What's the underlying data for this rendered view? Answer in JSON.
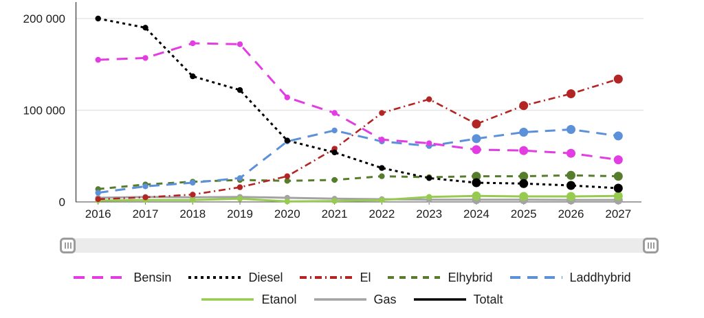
{
  "chart_data": {
    "type": "line",
    "title": "",
    "xlabel": "",
    "ylabel": "",
    "x": [
      "2016",
      "2017",
      "2018",
      "2019",
      "2020",
      "2021",
      "2022",
      "2023",
      "2024",
      "2025",
      "2026",
      "2027"
    ],
    "y_ticks": [
      {
        "value": 0,
        "label": "0"
      },
      {
        "value": 100000,
        "label": "100 000"
      },
      {
        "value": 200000,
        "label": "200 000"
      }
    ],
    "ylim": [
      0,
      218000
    ],
    "grid": "horizontal-only",
    "legend_position": "bottom",
    "forecast_marker_from_index": 8,
    "series": [
      {
        "name": "Bensin",
        "color": "#e23ce2",
        "style": "dashed",
        "dash": "16 11",
        "values": [
          155000,
          157000,
          173000,
          172000,
          114000,
          97000,
          68000,
          64000,
          57000,
          56000,
          53000,
          46000
        ]
      },
      {
        "name": "Diesel",
        "color": "#000000",
        "style": "dotted",
        "dash": "4 5",
        "values": [
          200000,
          190000,
          137000,
          122000,
          67000,
          54000,
          37000,
          26000,
          21000,
          20000,
          18000,
          15000
        ]
      },
      {
        "name": "El",
        "color": "#b32424",
        "style": "dash-dot",
        "dash": "10 5 2 5",
        "values": [
          3000,
          5000,
          8000,
          16000,
          28000,
          58000,
          97000,
          112000,
          85000,
          105000,
          118000,
          134000
        ]
      },
      {
        "name": "Elhybrid",
        "color": "#567d2b",
        "style": "dashed",
        "dash": "9 8",
        "values": [
          14000,
          19000,
          22000,
          24000,
          23000,
          24000,
          28000,
          27000,
          28000,
          28000,
          29000,
          28000
        ]
      },
      {
        "name": "Laddhybrid",
        "color": "#5c90d8",
        "style": "dashed",
        "dash": "15 10",
        "values": [
          10000,
          17000,
          21000,
          26000,
          66000,
          78000,
          66000,
          61000,
          69000,
          76000,
          79000,
          72000
        ]
      },
      {
        "name": "Etanol",
        "color": "#97cb50",
        "style": "solid",
        "dash": "",
        "values": [
          1500,
          2000,
          2000,
          3500,
          500,
          1000,
          2000,
          5500,
          6500,
          6000,
          6000,
          6500
        ]
      },
      {
        "name": "Gas",
        "color": "#a3a3a3",
        "style": "solid",
        "dash": "",
        "values": [
          4500,
          5500,
          5000,
          5500,
          4500,
          3500,
          3000,
          2500,
          2500,
          2500,
          2200,
          2200
        ]
      },
      {
        "name": "Totalt",
        "color": "#000000",
        "style": "solid",
        "dash": "",
        "values": null,
        "visible_in_plot": false
      }
    ]
  },
  "range_filter": {
    "left_grip_icon": "grip-vertical-lines",
    "right_grip_icon": "grip-vertical-lines"
  },
  "colors": {
    "background": "#ffffff",
    "gridline": "#e6e6e6",
    "axis_line": "#424242",
    "baseline": "#6b6b6b",
    "label_text": "#1c1c1c",
    "filter_track": "#ebebeb",
    "filter_handle": "#9b9b9b"
  }
}
